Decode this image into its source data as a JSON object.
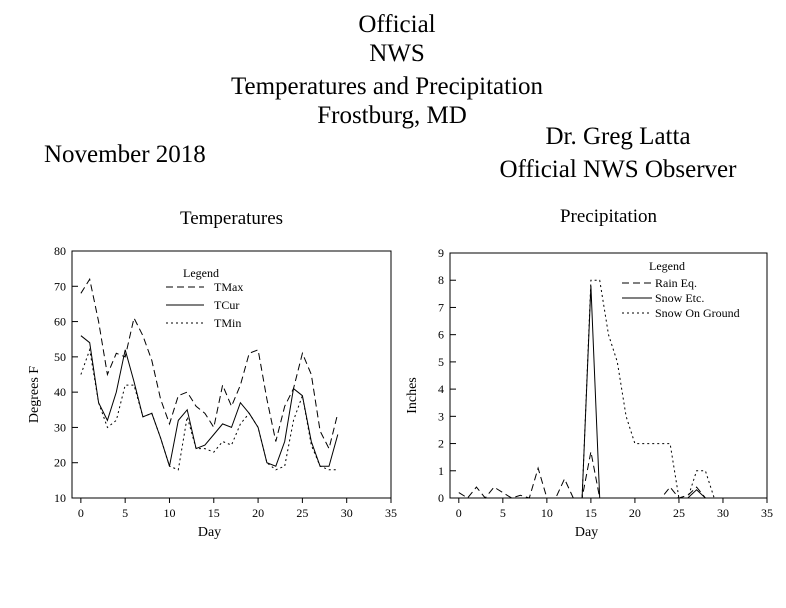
{
  "header": {
    "line1": "Official",
    "line2": "NWS",
    "line3": "Temperatures and Precipitation",
    "line4": "Frostburg, MD",
    "month": "November 2018",
    "observer_name": "Dr. Greg Latta",
    "observer_title": "Official NWS Observer"
  },
  "chart_data": [
    {
      "type": "line",
      "title": "Temperatures",
      "xlabel": "Day",
      "ylabel": "Degrees F",
      "xlim": [
        -1,
        35
      ],
      "ylim": [
        10,
        80
      ],
      "xticks": [
        0,
        5,
        10,
        15,
        20,
        25,
        30,
        35
      ],
      "yticks": [
        10,
        20,
        30,
        40,
        50,
        60,
        70,
        80
      ],
      "grid": false,
      "legend_title": "Legend",
      "legend_position": "top-center",
      "x": [
        0,
        1,
        2,
        3,
        4,
        5,
        6,
        7,
        8,
        9,
        10,
        11,
        12,
        13,
        14,
        15,
        16,
        17,
        18,
        19,
        20,
        21,
        22,
        23,
        24,
        25,
        26,
        27,
        28,
        29
      ],
      "series": [
        {
          "name": "TMax",
          "style": "dashed",
          "values": [
            68,
            72,
            60,
            45,
            51,
            50,
            61,
            56,
            49,
            38,
            31,
            39,
            40,
            36,
            34,
            30,
            42,
            36,
            42,
            51,
            52,
            38,
            26,
            36,
            41,
            51,
            45,
            29,
            24,
            34
          ]
        },
        {
          "name": "TCur",
          "style": "solid",
          "values": [
            56,
            54,
            37,
            32,
            40,
            52,
            43,
            33,
            34,
            27,
            19,
            32,
            35,
            24,
            25,
            28,
            31,
            30,
            37,
            34,
            30,
            20,
            19,
            26,
            41,
            39,
            26,
            19,
            19,
            28
          ]
        },
        {
          "name": "TMin",
          "style": "dotted",
          "values": [
            45,
            52,
            37,
            30,
            32,
            42,
            42,
            33,
            34,
            27,
            19,
            18,
            33,
            24,
            24,
            23,
            26,
            25,
            31,
            34,
            30,
            20,
            18,
            19,
            32,
            39,
            25,
            19,
            18,
            18
          ]
        }
      ]
    },
    {
      "type": "line",
      "title": "Precipitation",
      "xlabel": "Day",
      "ylabel": "Inches",
      "xlim": [
        -1,
        35
      ],
      "ylim": [
        0,
        9
      ],
      "xticks": [
        0,
        5,
        10,
        15,
        20,
        25,
        30,
        35
      ],
      "yticks": [
        0,
        1,
        2,
        3,
        4,
        5,
        6,
        7,
        8,
        9
      ],
      "grid": false,
      "legend_title": "Legend",
      "legend_position": "top-right",
      "x": [
        0,
        1,
        2,
        3,
        4,
        5,
        6,
        7,
        8,
        9,
        10,
        11,
        12,
        13,
        14,
        15,
        16,
        17,
        18,
        19,
        20,
        21,
        22,
        23,
        24,
        25,
        26,
        27,
        28,
        29
      ],
      "series": [
        {
          "name": "Rain Eq.",
          "style": "dashed",
          "values": [
            0.2,
            0,
            0.4,
            0,
            0.4,
            0.2,
            0,
            0.1,
            0,
            1.1,
            0,
            0,
            0.7,
            0,
            0,
            1.7,
            0,
            0,
            0,
            0,
            0,
            0,
            0,
            0,
            0.4,
            0,
            0.1,
            0.4,
            0,
            0
          ]
        },
        {
          "name": "Snow Etc.",
          "style": "solid",
          "values": [
            0,
            0,
            0,
            0,
            0,
            0,
            0,
            0,
            0,
            0,
            0,
            0,
            0,
            0,
            0,
            7.8,
            0,
            0,
            0,
            0,
            0,
            0,
            0,
            0,
            0,
            0,
            0,
            0.3,
            0,
            0
          ]
        },
        {
          "name": "Snow On Ground",
          "style": "dotted",
          "values": [
            0,
            0,
            0,
            0,
            0,
            0,
            0,
            0,
            0,
            0,
            0,
            0,
            0,
            0,
            0,
            8,
            8,
            6,
            5,
            3,
            2,
            2,
            2,
            2,
            2,
            0,
            0,
            1,
            1,
            0
          ]
        }
      ]
    }
  ]
}
